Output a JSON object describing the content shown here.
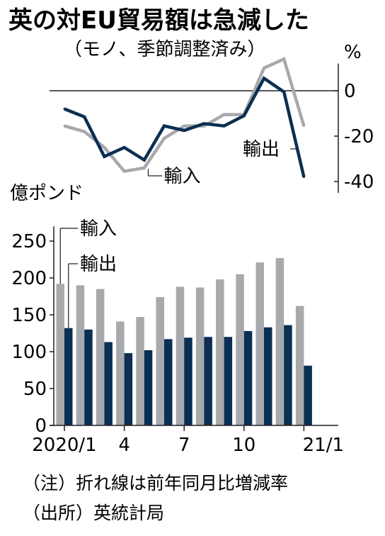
{
  "chart_data": [
    {
      "type": "line",
      "title": "英の対EU貿易額は急減した",
      "subtitle": "（モノ、季節調整済み）",
      "unit_label": "%",
      "ylim": [
        -45,
        12
      ],
      "yticks": [
        0,
        -20,
        -40
      ],
      "ytick_labels": [
        "0",
        "-20",
        "-40"
      ],
      "x": [
        "2020/1",
        "2",
        "3",
        "4",
        "5",
        "6",
        "7",
        "8",
        "9",
        "10",
        "11",
        "12",
        "21/1"
      ],
      "series": [
        {
          "name": "輸入",
          "color": "#a7a9ac",
          "values": [
            -15.5,
            -18,
            -25,
            -35.5,
            -34,
            -21,
            -15.5,
            -15.5,
            -10.5,
            -10.5,
            10,
            14,
            -15.5
          ]
        },
        {
          "name": "輸出",
          "color": "#0b2f52",
          "values": [
            -8,
            -11.5,
            -29,
            -25,
            -30.5,
            -15.5,
            -17.5,
            -14.5,
            -15.5,
            -11,
            5.5,
            -0.5,
            -38
          ]
        }
      ]
    },
    {
      "type": "bar",
      "unit_label": "億ポンド",
      "ylim": [
        0,
        270
      ],
      "yticks": [
        0,
        50,
        100,
        150,
        200,
        250
      ],
      "ytick_labels": [
        "0",
        "50",
        "100",
        "150",
        "200",
        "250"
      ],
      "x_tick_labels": [
        "2020/1",
        "4",
        "7",
        "10",
        "21/1"
      ],
      "x_tick_positions": [
        0,
        3,
        6,
        9,
        12
      ],
      "categories": [
        "2020/1",
        "2",
        "3",
        "4",
        "5",
        "6",
        "7",
        "8",
        "9",
        "10",
        "11",
        "12",
        "21/1"
      ],
      "series": [
        {
          "name": "輸入",
          "color": "#a7a9ac",
          "values": [
            192,
            190,
            185,
            141,
            147,
            174,
            188,
            187,
            198,
            205,
            221,
            227,
            162
          ]
        },
        {
          "name": "輸出",
          "color": "#0b2f52",
          "values": [
            132,
            130,
            113,
            98,
            102,
            117,
            119,
            120,
            120,
            128,
            133,
            136,
            81
          ]
        }
      ]
    }
  ],
  "notes": [
    "（注）折れ線は前年同月比増減率",
    "（出所）英統計局"
  ]
}
